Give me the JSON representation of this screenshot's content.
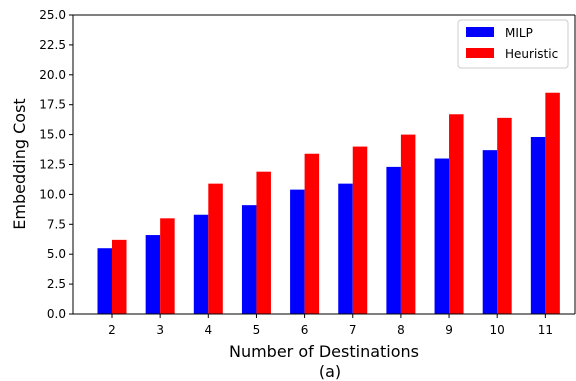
{
  "chart_data": {
    "type": "bar",
    "title": "",
    "xlabel": "Number of Destinations",
    "xlabel_sub": "(a)",
    "ylabel": "Embedding Cost",
    "categories": [
      "2",
      "3",
      "4",
      "5",
      "6",
      "7",
      "8",
      "9",
      "10",
      "11"
    ],
    "series": [
      {
        "name": "MILP",
        "color": "#0000ff",
        "values": [
          5.5,
          6.6,
          8.3,
          9.1,
          10.4,
          10.9,
          12.3,
          13.0,
          13.7,
          14.8
        ]
      },
      {
        "name": "Heuristic",
        "color": "#ff0000",
        "values": [
          6.2,
          8.0,
          10.9,
          11.9,
          13.4,
          14.0,
          15.0,
          16.7,
          16.4,
          18.5
        ]
      }
    ],
    "ylim": [
      0,
      25
    ],
    "yticks": [
      "0.0",
      "2.5",
      "5.0",
      "7.5",
      "10.0",
      "12.5",
      "15.0",
      "17.5",
      "20.0",
      "22.5",
      "25.0"
    ],
    "legend_position": "top-right",
    "grid": false
  }
}
